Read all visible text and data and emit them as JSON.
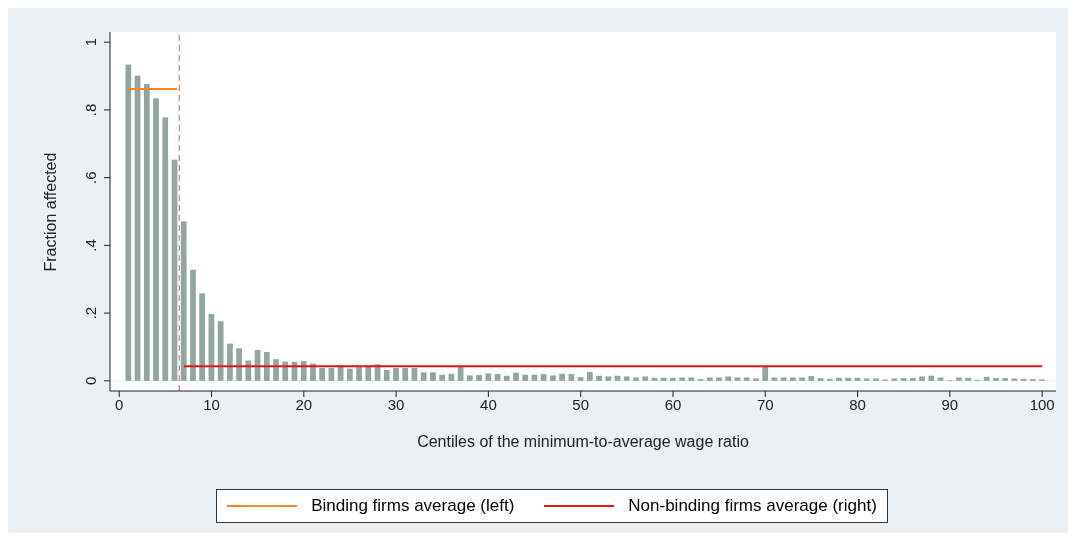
{
  "chart_data": {
    "type": "bar",
    "xlabel": "Centiles of the minimum-to-average wage ratio",
    "ylabel": "Fraction affected",
    "x": [
      1,
      2,
      3,
      4,
      5,
      6,
      7,
      8,
      9,
      10,
      11,
      12,
      13,
      14,
      15,
      16,
      17,
      18,
      19,
      20,
      21,
      22,
      23,
      24,
      25,
      26,
      27,
      28,
      29,
      30,
      31,
      32,
      33,
      34,
      35,
      36,
      37,
      38,
      39,
      40,
      41,
      42,
      43,
      44,
      45,
      46,
      47,
      48,
      49,
      50,
      51,
      52,
      53,
      54,
      55,
      56,
      57,
      58,
      59,
      60,
      61,
      62,
      63,
      64,
      65,
      66,
      67,
      68,
      69,
      70,
      71,
      72,
      73,
      74,
      75,
      76,
      77,
      78,
      79,
      80,
      81,
      82,
      83,
      84,
      85,
      86,
      87,
      88,
      89,
      90,
      91,
      92,
      93,
      94,
      95,
      96,
      97,
      98,
      99,
      100
    ],
    "series": [
      {
        "color": "#90a69e",
        "values": [
          0.934,
          0.901,
          0.876,
          0.834,
          0.778,
          0.653,
          0.471,
          0.328,
          0.258,
          0.197,
          0.176,
          0.11,
          0.096,
          0.06,
          0.091,
          0.085,
          0.064,
          0.057,
          0.056,
          0.058,
          0.051,
          0.038,
          0.038,
          0.047,
          0.036,
          0.045,
          0.045,
          0.049,
          0.032,
          0.038,
          0.038,
          0.038,
          0.025,
          0.025,
          0.018,
          0.021,
          0.042,
          0.016,
          0.017,
          0.022,
          0.02,
          0.015,
          0.024,
          0.018,
          0.018,
          0.02,
          0.016,
          0.021,
          0.02,
          0.011,
          0.026,
          0.015,
          0.013,
          0.015,
          0.013,
          0.01,
          0.013,
          0.009,
          0.009,
          0.009,
          0.01,
          0.01,
          0.005,
          0.01,
          0.01,
          0.013,
          0.01,
          0.01,
          0.007,
          0.045,
          0.01,
          0.01,
          0.01,
          0.01,
          0.014,
          0.008,
          0.006,
          0.009,
          0.009,
          0.009,
          0.007,
          0.007,
          0.004,
          0.007,
          0.008,
          0.008,
          0.013,
          0.015,
          0.01,
          0.002,
          0.01,
          0.009,
          0.003,
          0.012,
          0.008,
          0.008,
          0.007,
          0.006,
          0.005,
          0.004
        ]
      },
      {
        "type": "line",
        "name": "Binding firms average (left)",
        "color": "#f28a1e",
        "x": [
          1,
          6.3
        ],
        "values": [
          0.862,
          0.862
        ]
      },
      {
        "type": "line",
        "name": "Non-binding firms average (right)",
        "color": "#ee1111",
        "x": [
          7,
          100
        ],
        "values": [
          0.043,
          0.043
        ]
      }
    ],
    "xlim": [
      -1,
      101.5
    ],
    "xticks": [
      0,
      10,
      20,
      30,
      40,
      50,
      60,
      70,
      80,
      90,
      100
    ],
    "ylim": [
      -0.03,
      1.03
    ],
    "yticks": [
      0,
      {
        "value": 0.2,
        "label": ".2"
      },
      {
        "value": 0.4,
        "label": ".4"
      },
      {
        "value": 0.6,
        "label": ".6"
      },
      {
        "value": 0.8,
        "label": ".8"
      },
      1
    ],
    "ref_lines": [
      {
        "axis": "x",
        "value": 6.5,
        "color": "#c0607a",
        "line_style": "dashed"
      }
    ],
    "grid": "y",
    "legend": "bottom"
  }
}
